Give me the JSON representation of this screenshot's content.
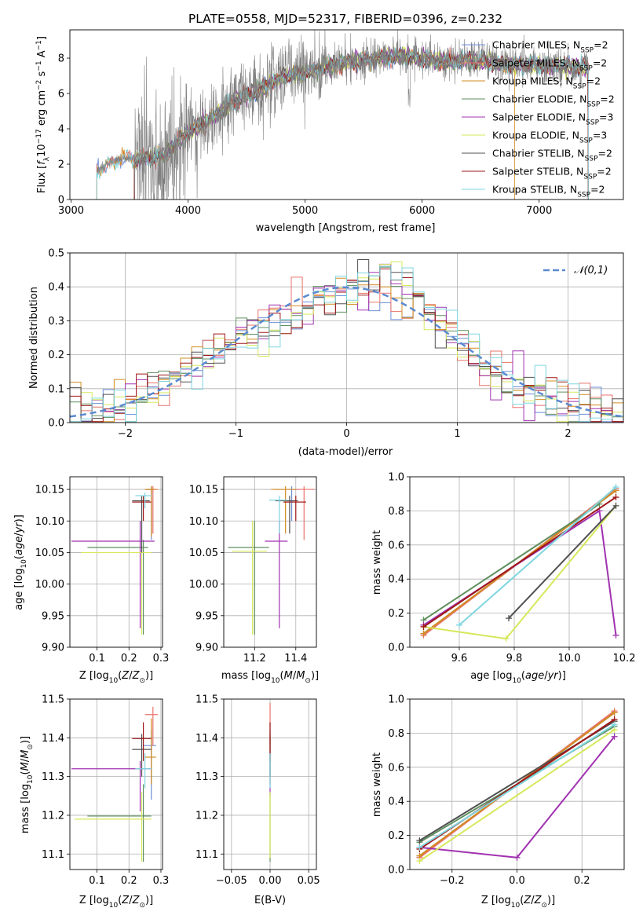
{
  "title": "PLATE=0558, MJD=52317, FIBERID=0396, z=0.232",
  "models": [
    {
      "name": "Chabrier MILES, N_SSP=2",
      "label": "Chabrier MILES, N",
      "sub": "SSP",
      "suffix": "=2",
      "color": "#6b8fd6"
    },
    {
      "name": "Salpeter MILES, N_SSP=2",
      "label": "Salpeter MILES, N",
      "sub": "SSP",
      "suffix": "=2",
      "color": "#e9736b"
    },
    {
      "name": "Kroupa MILES, N_SSP=2",
      "label": "Kroupa MILES, N",
      "sub": "SSP",
      "suffix": "=2",
      "color": "#d28c20"
    },
    {
      "name": "Chabrier ELODIE, N_SSP=2",
      "label": "Chabrier ELODIE, N",
      "sub": "SSP",
      "suffix": "=2",
      "color": "#5f8f5f"
    },
    {
      "name": "Salpeter ELODIE, N_SSP=3",
      "label": "Salpeter ELODIE, N",
      "sub": "SSP",
      "suffix": "=3",
      "color": "#a032b0"
    },
    {
      "name": "Kroupa ELODIE, N_SSP=3",
      "label": "Kroupa ELODIE, N",
      "sub": "SSP",
      "suffix": "=3",
      "color": "#d6e85a"
    },
    {
      "name": "Chabrier STELIB, N_SSP=2",
      "label": "Chabrier STELIB, N",
      "sub": "SSP",
      "suffix": "=2",
      "color": "#505050"
    },
    {
      "name": "Salpeter STELIB, N_SSP=2",
      "label": "Salpeter STELIB, N",
      "sub": "SSP",
      "suffix": "=2",
      "color": "#a01818"
    },
    {
      "name": "Kroupa STELIB, N_SSP=2",
      "label": "Kroupa STELIB, N",
      "sub": "SSP",
      "suffix": "=2",
      "color": "#7fd6e0"
    }
  ],
  "chart_data": [
    {
      "id": "spectrum",
      "type": "line",
      "xlabel": "wavelength [Angstrom, rest frame]",
      "ylabel": "Flux [f_λ 10^-17 erg cm^-2 s^-1 A^-1]",
      "xlim": [
        2990,
        7720
      ],
      "ylim": [
        0,
        9.6
      ],
      "xticks": [
        3000,
        4000,
        5000,
        6000,
        7000
      ],
      "yticks": [
        0,
        2,
        4,
        6,
        8
      ],
      "legend": "top-right",
      "data_color": "#808080",
      "continuum": [
        [
          3220,
          1.6
        ],
        [
          3400,
          2.3
        ],
        [
          3600,
          2.3
        ],
        [
          3800,
          2.5
        ],
        [
          4000,
          3.8
        ],
        [
          4200,
          4.6
        ],
        [
          4400,
          5.6
        ],
        [
          4600,
          6.2
        ],
        [
          4800,
          6.9
        ],
        [
          5000,
          7.2
        ],
        [
          5200,
          7.6
        ],
        [
          5400,
          7.8
        ],
        [
          5600,
          8.0
        ],
        [
          5800,
          8.1
        ],
        [
          6000,
          8.0
        ],
        [
          6200,
          7.8
        ],
        [
          6400,
          7.9
        ],
        [
          6600,
          7.7
        ],
        [
          6800,
          7.6
        ],
        [
          7000,
          7.6
        ],
        [
          7200,
          7.5
        ],
        [
          7400,
          7.5
        ]
      ],
      "data_noise_segments": [
        [
          3540,
          4000,
          2.2
        ],
        [
          4000,
          5200,
          1.2
        ],
        [
          5200,
          7420,
          0.6
        ]
      ]
    },
    {
      "id": "residuals",
      "type": "step",
      "xlabel": "(data-model)/error",
      "ylabel": "Normed distribution",
      "xlim": [
        -2.5,
        2.5
      ],
      "ylim": [
        0,
        0.5
      ],
      "xticks": [
        -2,
        -1,
        0,
        1,
        2
      ],
      "yticks": [
        0.0,
        0.1,
        0.2,
        0.3,
        0.4,
        0.5
      ],
      "grid": true,
      "legend": "top-right",
      "gaussian": {
        "label": "𝒩(0,1)",
        "color": "#5b8ad1",
        "mu": 0,
        "sigma": 1
      },
      "bin_width": 0.1
    },
    {
      "id": "age-vs-Z",
      "type": "errorbar",
      "xlabel": "Z [log10(Z/Z⊙)]",
      "ylabel": "age [log10(age/yr)]",
      "xlim": [
        0.015,
        0.305
      ],
      "ylim": [
        9.9,
        10.17
      ],
      "xticks": [
        0.1,
        0.2,
        0.3
      ],
      "yticks": [
        9.9,
        9.95,
        10.0,
        10.05,
        10.1,
        10.15
      ],
      "grid": true,
      "points": [
        {
          "model": 0,
          "x": 0.27,
          "xerr": [
            0.25,
            0.28
          ],
          "y": 10.15,
          "yerr": [
            10.07,
            10.155
          ]
        },
        {
          "model": 1,
          "x": 0.275,
          "xerr": [
            0.255,
            0.29
          ],
          "y": 10.15,
          "yerr": [
            10.08,
            10.155
          ]
        },
        {
          "model": 2,
          "x": 0.27,
          "xerr": [
            0.25,
            0.285
          ],
          "y": 10.15,
          "yerr": [
            10.075,
            10.155
          ]
        },
        {
          "model": 3,
          "x": 0.245,
          "xerr": [
            0.07,
            0.26
          ],
          "y": 10.058,
          "yerr": [
            9.92,
            10.07
          ]
        },
        {
          "model": 4,
          "x": 0.235,
          "xerr": [
            0.02,
            0.28
          ],
          "y": 10.068,
          "yerr": [
            9.93,
            10.1
          ]
        },
        {
          "model": 5,
          "x": 0.24,
          "xerr": [
            0.05,
            0.27
          ],
          "y": 10.05,
          "yerr": [
            9.92,
            10.06
          ]
        },
        {
          "model": 6,
          "x": 0.24,
          "xerr": [
            0.21,
            0.265
          ],
          "y": 10.132,
          "yerr": [
            10.05,
            10.14
          ]
        },
        {
          "model": 7,
          "x": 0.245,
          "xerr": [
            0.21,
            0.27
          ],
          "y": 10.13,
          "yerr": [
            10.1,
            10.14
          ]
        },
        {
          "model": 8,
          "x": 0.25,
          "xerr": [
            0.22,
            0.27
          ],
          "y": 10.14,
          "yerr": [
            10.12,
            10.145
          ]
        }
      ]
    },
    {
      "id": "age-vs-mass",
      "type": "errorbar",
      "xlabel": "mass [log10(M/M⊙)]",
      "ylabel": "",
      "xlim": [
        11.05,
        11.5
      ],
      "ylim": [
        9.9,
        10.17
      ],
      "xticks": [
        11.2,
        11.4
      ],
      "yticks": [
        9.9,
        9.95,
        10.0,
        10.05,
        10.1,
        10.15
      ],
      "grid": true,
      "points": [
        {
          "model": 0,
          "x": 11.38,
          "xerr": [
            11.3,
            11.42
          ],
          "y": 10.15,
          "yerr": [
            10.1,
            10.155
          ]
        },
        {
          "model": 1,
          "x": 11.44,
          "xerr": [
            11.38,
            11.49
          ],
          "y": 10.15,
          "yerr": [
            10.07,
            10.155
          ]
        },
        {
          "model": 2,
          "x": 11.35,
          "xerr": [
            11.28,
            11.4
          ],
          "y": 10.15,
          "yerr": [
            10.08,
            10.155
          ]
        },
        {
          "model": 3,
          "x": 11.2,
          "xerr": [
            11.07,
            11.27
          ],
          "y": 10.058,
          "yerr": [
            9.92,
            10.1
          ]
        },
        {
          "model": 4,
          "x": 11.32,
          "xerr": [
            11.25,
            11.36
          ],
          "y": 10.068,
          "yerr": [
            9.93,
            10.1
          ]
        },
        {
          "model": 5,
          "x": 11.19,
          "xerr": [
            11.09,
            11.26
          ],
          "y": 10.052,
          "yerr": [
            9.92,
            10.1
          ]
        },
        {
          "model": 6,
          "x": 11.37,
          "xerr": [
            11.3,
            11.41
          ],
          "y": 10.132,
          "yerr": [
            10.08,
            10.14
          ]
        },
        {
          "model": 7,
          "x": 11.4,
          "xerr": [
            11.34,
            11.45
          ],
          "y": 10.13,
          "yerr": [
            10.1,
            10.14
          ]
        },
        {
          "model": 8,
          "x": 11.32,
          "xerr": [
            11.27,
            11.36
          ],
          "y": 10.133,
          "yerr": [
            10.08,
            10.14
          ]
        }
      ]
    },
    {
      "id": "weight-vs-age",
      "type": "line",
      "xlabel": "age [log10(age/yr)]",
      "ylabel": "mass weight",
      "xlim": [
        9.42,
        10.2
      ],
      "ylim": [
        0,
        1.0
      ],
      "xticks": [
        9.6,
        9.8,
        10.0,
        10.2
      ],
      "yticks": [
        0.0,
        0.2,
        0.4,
        0.6,
        0.8,
        1.0
      ],
      "grid": true,
      "series": [
        {
          "model": 0,
          "x": [
            9.47,
            10.17
          ],
          "y": [
            0.08,
            0.92
          ]
        },
        {
          "model": 1,
          "x": [
            9.47,
            10.17
          ],
          "y": [
            0.07,
            0.93
          ]
        },
        {
          "model": 2,
          "x": [
            9.47,
            10.17
          ],
          "y": [
            0.08,
            0.92
          ]
        },
        {
          "model": 3,
          "x": [
            9.47,
            10.11
          ],
          "y": [
            0.16,
            0.84
          ]
        },
        {
          "model": 4,
          "x": [
            9.47,
            10.11,
            10.17
          ],
          "y": [
            0.13,
            0.8,
            0.07
          ]
        },
        {
          "model": 5,
          "x": [
            9.47,
            9.77,
            10.17
          ],
          "y": [
            0.12,
            0.05,
            0.83
          ]
        },
        {
          "model": 6,
          "x": [
            9.78,
            10.17
          ],
          "y": [
            0.17,
            0.83
          ]
        },
        {
          "model": 7,
          "x": [
            9.47,
            10.17
          ],
          "y": [
            0.12,
            0.88
          ]
        },
        {
          "model": 8,
          "x": [
            9.6,
            10.17
          ],
          "y": [
            0.13,
            0.94
          ]
        }
      ]
    },
    {
      "id": "mass-vs-Z",
      "type": "errorbar",
      "xlabel": "Z [log10(Z/Z⊙)]",
      "ylabel": "mass [log10(M/M⊙)]",
      "xlim": [
        0.015,
        0.305
      ],
      "ylim": [
        11.06,
        11.5
      ],
      "xticks": [
        0.1,
        0.2,
        0.3
      ],
      "yticks": [
        11.1,
        11.2,
        11.3,
        11.4,
        11.5
      ],
      "grid": true,
      "points": [
        {
          "model": 0,
          "x": 0.27,
          "xerr": [
            0.245,
            0.285
          ],
          "y": 11.38,
          "yerr": [
            11.24,
            11.42
          ]
        },
        {
          "model": 1,
          "x": 0.275,
          "xerr": [
            0.25,
            0.29
          ],
          "y": 11.46,
          "yerr": [
            11.38,
            11.48
          ]
        },
        {
          "model": 2,
          "x": 0.27,
          "xerr": [
            0.25,
            0.285
          ],
          "y": 11.35,
          "yerr": [
            11.28,
            11.45
          ]
        },
        {
          "model": 3,
          "x": 0.245,
          "xerr": [
            0.07,
            0.27
          ],
          "y": 11.198,
          "yerr": [
            11.08,
            11.28
          ]
        },
        {
          "model": 4,
          "x": 0.235,
          "xerr": [
            0.02,
            0.27
          ],
          "y": 11.32,
          "yerr": [
            11.21,
            11.34
          ]
        },
        {
          "model": 5,
          "x": 0.24,
          "xerr": [
            0.03,
            0.27
          ],
          "y": 11.19,
          "yerr": [
            11.08,
            11.26
          ]
        },
        {
          "model": 6,
          "x": 0.24,
          "xerr": [
            0.21,
            0.27
          ],
          "y": 11.37,
          "yerr": [
            11.3,
            11.41
          ]
        },
        {
          "model": 7,
          "x": 0.245,
          "xerr": [
            0.21,
            0.27
          ],
          "y": 11.398,
          "yerr": [
            11.34,
            11.44
          ]
        },
        {
          "model": 8,
          "x": 0.25,
          "xerr": [
            0.22,
            0.27
          ],
          "y": 11.32,
          "yerr": [
            11.27,
            11.36
          ]
        }
      ]
    },
    {
      "id": "mass-vs-ebv",
      "type": "errorbar",
      "xlabel": "E(B-V)",
      "ylabel": "",
      "xlim": [
        -0.06,
        0.06
      ],
      "ylim": [
        11.06,
        11.5
      ],
      "xticks": [
        -0.05,
        0.0,
        0.05
      ],
      "yticks": [
        11.1,
        11.2,
        11.3,
        11.4,
        11.5
      ],
      "grid": true,
      "points": [
        {
          "model": 0,
          "x": 0,
          "xerr": [
            0,
            0
          ],
          "y": 11.38,
          "yerr": [
            11.3,
            11.42
          ]
        },
        {
          "model": 1,
          "x": 0,
          "xerr": [
            0,
            0
          ],
          "y": 11.46,
          "yerr": [
            11.38,
            11.49
          ]
        },
        {
          "model": 2,
          "x": 0,
          "xerr": [
            0,
            0
          ],
          "y": 11.35,
          "yerr": [
            11.28,
            11.4
          ]
        },
        {
          "model": 3,
          "x": 0,
          "xerr": [
            0,
            0
          ],
          "y": 11.198,
          "yerr": [
            11.08,
            11.26
          ]
        },
        {
          "model": 4,
          "x": 0,
          "xerr": [
            0,
            0
          ],
          "y": 11.32,
          "yerr": [
            11.25,
            11.36
          ]
        },
        {
          "model": 5,
          "x": 0,
          "xerr": [
            0,
            0
          ],
          "y": 11.19,
          "yerr": [
            11.09,
            11.26
          ]
        },
        {
          "model": 6,
          "x": 0,
          "xerr": [
            0,
            0
          ],
          "y": 11.37,
          "yerr": [
            11.3,
            11.41
          ]
        },
        {
          "model": 7,
          "x": 0,
          "xerr": [
            0,
            0
          ],
          "y": 11.398,
          "yerr": [
            11.34,
            11.44
          ]
        },
        {
          "model": 8,
          "x": 0,
          "xerr": [
            0,
            0
          ],
          "y": 11.32,
          "yerr": [
            11.27,
            11.36
          ]
        }
      ]
    },
    {
      "id": "weight-vs-Z",
      "type": "line",
      "xlabel": "Z [log10(Z/Z⊙)]",
      "ylabel": "mass weight",
      "xlim": [
        -0.33,
        0.33
      ],
      "ylim": [
        0,
        1.0
      ],
      "xticks": [
        -0.2,
        0.0,
        0.2
      ],
      "yticks": [
        0.0,
        0.2,
        0.4,
        0.6,
        0.8,
        1.0
      ],
      "grid": true,
      "series": [
        {
          "model": 0,
          "x": [
            -0.3,
            0.3
          ],
          "y": [
            0.08,
            0.92
          ]
        },
        {
          "model": 1,
          "x": [
            -0.3,
            0.3
          ],
          "y": [
            0.07,
            0.93
          ]
        },
        {
          "model": 2,
          "x": [
            -0.3,
            0.3
          ],
          "y": [
            0.08,
            0.92
          ]
        },
        {
          "model": 3,
          "x": [
            -0.3,
            0.3
          ],
          "y": [
            0.16,
            0.84
          ]
        },
        {
          "model": 4,
          "x": [
            -0.3,
            0.0,
            0.3
          ],
          "y": [
            0.13,
            0.07,
            0.78
          ]
        },
        {
          "model": 5,
          "x": [
            -0.3,
            0.3
          ],
          "y": [
            0.05,
            0.82
          ]
        },
        {
          "model": 6,
          "x": [
            -0.3,
            0.3
          ],
          "y": [
            0.17,
            0.87
          ]
        },
        {
          "model": 7,
          "x": [
            -0.3,
            0.3
          ],
          "y": [
            0.12,
            0.88
          ]
        },
        {
          "model": 8,
          "x": [
            -0.3,
            0.3
          ],
          "y": [
            0.13,
            0.85
          ]
        }
      ]
    }
  ]
}
